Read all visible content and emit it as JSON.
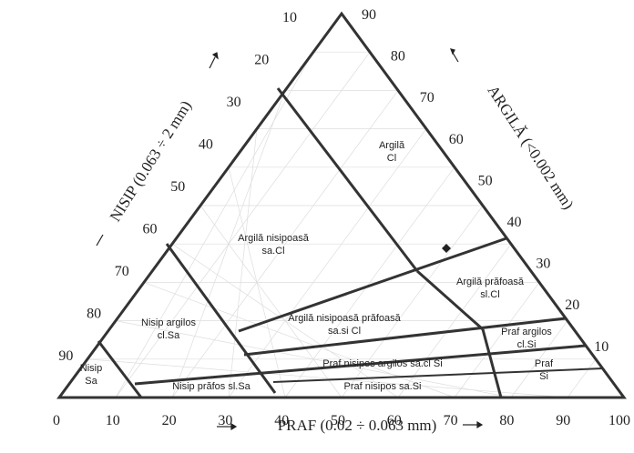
{
  "left_axis": {
    "title": "NISIP (0.063 ÷ 2 mm)",
    "ticks": [
      10,
      20,
      30,
      40,
      50,
      60,
      70,
      80,
      90
    ]
  },
  "right_axis": {
    "title": "ARGILĂ (<0.002 mm)",
    "ticks": [
      90,
      80,
      70,
      60,
      50,
      40,
      30,
      20,
      10
    ]
  },
  "bottom_axis": {
    "title": "PRAF (0.02 ÷ 0.063 mm)",
    "ticks": [
      0,
      10,
      20,
      30,
      40,
      50,
      60,
      70,
      80,
      90,
      100
    ]
  },
  "regions": [
    {
      "name": "Argilă",
      "code": "Cl"
    },
    {
      "name": "Argilă nisipoasă",
      "code": "sa.Cl"
    },
    {
      "name": "Argilă prăfoasă",
      "code": "sl.Cl"
    },
    {
      "name": "Argilă nisipoasă prăfoasă",
      "code": "sa.si Cl"
    },
    {
      "name": "Nisip argilos",
      "code": "cl.Sa"
    },
    {
      "name": "Praf argilos",
      "code": "cl.Si"
    },
    {
      "name": "Praf nisipos argilos sa.cl Si"
    },
    {
      "name": "Nisip",
      "code": "Sa"
    },
    {
      "name": "Nisip prăfos sl.Sa"
    },
    {
      "name": "Praf nisipos sa.Si"
    },
    {
      "name": "Praf",
      "code": "Si"
    }
  ]
}
